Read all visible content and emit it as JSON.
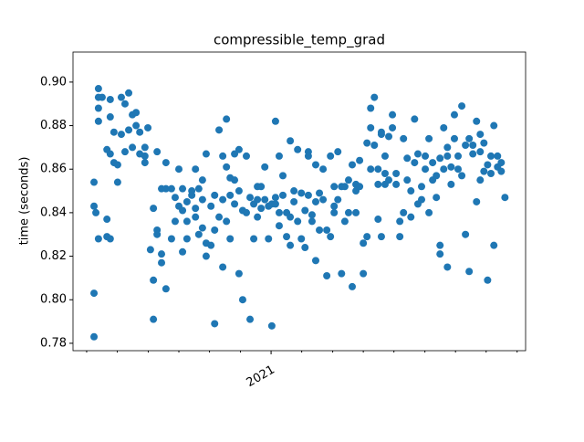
{
  "chart_data": {
    "type": "scatter",
    "title": "compressible_temp_grad",
    "y_label": "time (seconds)",
    "color": "#1f77b4",
    "xlim": [
      2020.463,
      2021.69
    ],
    "ylim": [
      0.7766,
      0.9138
    ],
    "xticks": [
      {
        "value": 2021,
        "label": "2021"
      }
    ],
    "x_minor_ticks": [
      2020.5,
      2020.583,
      2020.667,
      2020.75,
      2020.833,
      2020.917,
      2021.083,
      2021.167,
      2021.25,
      2021.333,
      2021.417,
      2021.5,
      2021.583,
      2021.667
    ],
    "yticks": [
      0.78,
      {
        "value": 0.8,
        "label": "0.80"
      },
      0.82,
      0.84,
      0.86,
      0.88,
      {
        "value": 0.9,
        "label": "0.90"
      }
    ],
    "x": [
      2020.52,
      2020.52,
      2020.52,
      2020.52,
      2020.525,
      2020.532,
      2020.532,
      2020.532,
      2020.532,
      2020.532,
      2020.542,
      2020.555,
      2020.555,
      2020.555,
      2020.564,
      2020.564,
      2020.564,
      2020.564,
      2020.574,
      2020.574,
      2020.584,
      2020.584,
      2020.594,
      2020.594,
      2020.604,
      2020.604,
      2020.614,
      2020.614,
      2020.624,
      2020.624,
      2020.634,
      2020.634,
      2020.644,
      2020.644,
      2020.658,
      2020.658,
      2020.658,
      2020.666,
      2020.673,
      2020.681,
      2020.681,
      2020.681,
      2020.691,
      2020.691,
      2020.691,
      2020.703,
      2020.703,
      2020.703,
      2020.715,
      2020.715,
      2020.715,
      2020.73,
      2020.73,
      2020.74,
      2020.74,
      2020.75,
      2020.75,
      2020.76,
      2020.76,
      2020.76,
      2020.772,
      2020.772,
      2020.772,
      2020.785,
      2020.785,
      2020.795,
      2020.795,
      2020.795,
      2020.804,
      2020.804,
      2020.814,
      2020.814,
      2020.814,
      2020.824,
      2020.824,
      2020.824,
      2020.837,
      2020.837,
      2020.847,
      2020.847,
      2020.847,
      2020.859,
      2020.859,
      2020.869,
      2020.869,
      2020.869,
      2020.879,
      2020.879,
      2020.879,
      2020.889,
      2020.889,
      2020.889,
      2020.901,
      2020.901,
      2020.901,
      2020.913,
      2020.913,
      2020.913,
      2020.923,
      2020.923,
      2020.933,
      2020.933,
      2020.943,
      2020.943,
      2020.953,
      2020.953,
      2020.963,
      2020.963,
      2020.963,
      2020.973,
      2020.973,
      2020.983,
      2020.983,
      2020.993,
      2020.993,
      2021.002,
      2021.002,
      2021.012,
      2021.012,
      2021.012,
      2021.022,
      2021.022,
      2021.022,
      2021.032,
      2021.032,
      2021.042,
      2021.042,
      2021.052,
      2021.052,
      2021.052,
      2021.062,
      2021.062,
      2021.072,
      2021.072,
      2021.082,
      2021.082,
      2021.092,
      2021.092,
      2021.101,
      2021.101,
      2021.101,
      2021.111,
      2021.111,
      2021.121,
      2021.121,
      2021.121,
      2021.131,
      2021.131,
      2021.141,
      2021.141,
      2021.151,
      2021.151,
      2021.161,
      2021.161,
      2021.171,
      2021.171,
      2021.171,
      2021.181,
      2021.181,
      2021.191,
      2021.191,
      2021.2,
      2021.2,
      2021.21,
      2021.21,
      2021.22,
      2021.22,
      2021.23,
      2021.23,
      2021.23,
      2021.24,
      2021.24,
      2021.25,
      2021.25,
      2021.26,
      2021.26,
      2021.27,
      2021.27,
      2021.27,
      2021.28,
      2021.28,
      2021.29,
      2021.29,
      2021.29,
      2021.299,
      2021.299,
      2021.299,
      2021.309,
      2021.309,
      2021.309,
      2021.319,
      2021.319,
      2021.329,
      2021.329,
      2021.339,
      2021.339,
      2021.349,
      2021.349,
      2021.359,
      2021.359,
      2021.369,
      2021.369,
      2021.379,
      2021.379,
      2021.389,
      2021.389,
      2021.398,
      2021.398,
      2021.408,
      2021.408,
      2021.418,
      2021.418,
      2021.428,
      2021.428,
      2021.438,
      2021.438,
      2021.448,
      2021.448,
      2021.458,
      2021.458,
      2021.458,
      2021.468,
      2021.468,
      2021.478,
      2021.478,
      2021.478,
      2021.488,
      2021.488,
      2021.497,
      2021.497,
      2021.507,
      2021.507,
      2021.517,
      2021.517,
      2021.527,
      2021.527,
      2021.537,
      2021.537,
      2021.547,
      2021.547,
      2021.557,
      2021.557,
      2021.567,
      2021.567,
      2021.567,
      2021.577,
      2021.577,
      2021.587,
      2021.587,
      2021.596,
      2021.596,
      2021.604,
      2021.604,
      2021.614,
      2021.614,
      2021.624,
      2021.624,
      2021.634
    ],
    "values": [
      0.803,
      0.783,
      0.854,
      0.843,
      0.84,
      0.828,
      0.882,
      0.888,
      0.893,
      0.897,
      0.893,
      0.869,
      0.837,
      0.829,
      0.867,
      0.884,
      0.828,
      0.892,
      0.863,
      0.877,
      0.854,
      0.862,
      0.893,
      0.876,
      0.89,
      0.868,
      0.895,
      0.878,
      0.885,
      0.87,
      0.886,
      0.88,
      0.877,
      0.867,
      0.863,
      0.87,
      0.866,
      0.879,
      0.823,
      0.842,
      0.809,
      0.791,
      0.868,
      0.832,
      0.83,
      0.851,
      0.821,
      0.817,
      0.805,
      0.863,
      0.851,
      0.828,
      0.851,
      0.847,
      0.836,
      0.843,
      0.86,
      0.822,
      0.841,
      0.851,
      0.828,
      0.836,
      0.845,
      0.848,
      0.85,
      0.86,
      0.842,
      0.838,
      0.83,
      0.851,
      0.855,
      0.846,
      0.833,
      0.867,
      0.826,
      0.82,
      0.825,
      0.843,
      0.848,
      0.832,
      0.789,
      0.878,
      0.838,
      0.866,
      0.846,
      0.815,
      0.861,
      0.883,
      0.836,
      0.848,
      0.856,
      0.828,
      0.867,
      0.855,
      0.844,
      0.812,
      0.869,
      0.85,
      0.8,
      0.841,
      0.866,
      0.84,
      0.847,
      0.791,
      0.828,
      0.844,
      0.852,
      0.838,
      0.846,
      0.852,
      0.842,
      0.861,
      0.846,
      0.828,
      0.843,
      0.788,
      0.844,
      0.882,
      0.844,
      0.847,
      0.866,
      0.834,
      0.84,
      0.857,
      0.848,
      0.829,
      0.84,
      0.873,
      0.825,
      0.838,
      0.845,
      0.85,
      0.869,
      0.836,
      0.849,
      0.828,
      0.841,
      0.824,
      0.868,
      0.866,
      0.848,
      0.839,
      0.836,
      0.862,
      0.818,
      0.845,
      0.849,
      0.832,
      0.86,
      0.846,
      0.811,
      0.832,
      0.866,
      0.829,
      0.852,
      0.84,
      0.843,
      0.868,
      0.846,
      0.812,
      0.852,
      0.852,
      0.836,
      0.855,
      0.84,
      0.806,
      0.862,
      0.853,
      0.85,
      0.84,
      0.864,
      0.852,
      0.812,
      0.826,
      0.872,
      0.829,
      0.86,
      0.879,
      0.888,
      0.893,
      0.871,
      0.86,
      0.853,
      0.837,
      0.877,
      0.829,
      0.876,
      0.866,
      0.858,
      0.853,
      0.875,
      0.855,
      0.885,
      0.879,
      0.858,
      0.853,
      0.829,
      0.836,
      0.84,
      0.874,
      0.865,
      0.855,
      0.85,
      0.838,
      0.883,
      0.863,
      0.867,
      0.844,
      0.846,
      0.852,
      0.86,
      0.866,
      0.874,
      0.84,
      0.855,
      0.863,
      0.857,
      0.847,
      0.865,
      0.825,
      0.821,
      0.879,
      0.86,
      0.87,
      0.815,
      0.866,
      0.853,
      0.861,
      0.885,
      0.874,
      0.866,
      0.86,
      0.889,
      0.857,
      0.871,
      0.83,
      0.874,
      0.813,
      0.867,
      0.871,
      0.882,
      0.845,
      0.876,
      0.868,
      0.855,
      0.872,
      0.859,
      0.862,
      0.809,
      0.866,
      0.858,
      0.88,
      0.825,
      0.866,
      0.861,
      0.863,
      0.859,
      0.847
    ]
  }
}
